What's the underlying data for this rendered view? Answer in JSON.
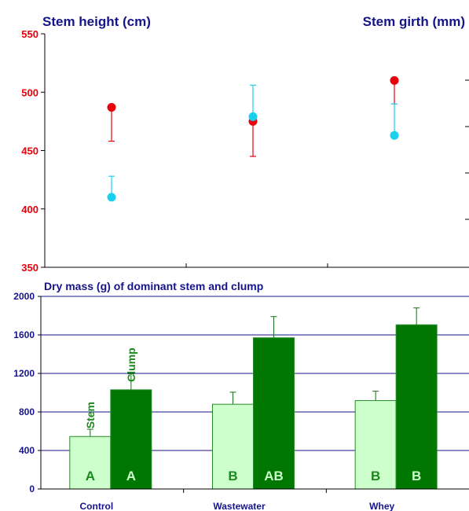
{
  "colors": {
    "navy": "#14148c",
    "height_red": "#e8000b",
    "girth_cyan": "#1ad0ee",
    "stem_fill": "#ccffcc",
    "clump_fill": "#007700",
    "stem_letter": "#1a8a1a",
    "clump_letter": "#ccffcc"
  },
  "chart_data": [
    {
      "type": "scatter",
      "title_left": "Stem height (cm)",
      "title_right": "Stem girth (mm)",
      "categories": [
        "Control",
        "Wastewater",
        "Whey"
      ],
      "ylim": [
        350,
        550
      ],
      "yticks": [
        "350",
        "400",
        "450",
        "500",
        "550"
      ],
      "series": [
        {
          "key": "height",
          "values": [
            487,
            475,
            510
          ],
          "error_low": [
            458,
            445,
            490
          ],
          "error_high": [
            487,
            475,
            510
          ]
        },
        {
          "key": "girth",
          "values": [
            410,
            479,
            463
          ],
          "error_low": [
            410,
            479,
            463
          ],
          "error_high": [
            428,
            506,
            490
          ]
        }
      ],
      "grid": false
    },
    {
      "type": "bar",
      "title": "Dry mass (g) of dominant stem and clump",
      "categories": [
        "Control",
        "Wastewater",
        "Whey"
      ],
      "ylim": [
        0,
        2000
      ],
      "yticks": [
        "0",
        "400",
        "800",
        "1200",
        "1600",
        "2000"
      ],
      "series": [
        {
          "name": "Stem",
          "values": [
            545,
            880,
            918
          ],
          "error_high": [
            620,
            1005,
            1015
          ],
          "letters": [
            "A",
            "B",
            "B"
          ]
        },
        {
          "name": "Clump",
          "values": [
            1030,
            1570,
            1705
          ],
          "error_high": [
            1195,
            1790,
            1880
          ],
          "letters": [
            "A",
            "AB",
            "B"
          ]
        }
      ],
      "grid": true
    }
  ]
}
